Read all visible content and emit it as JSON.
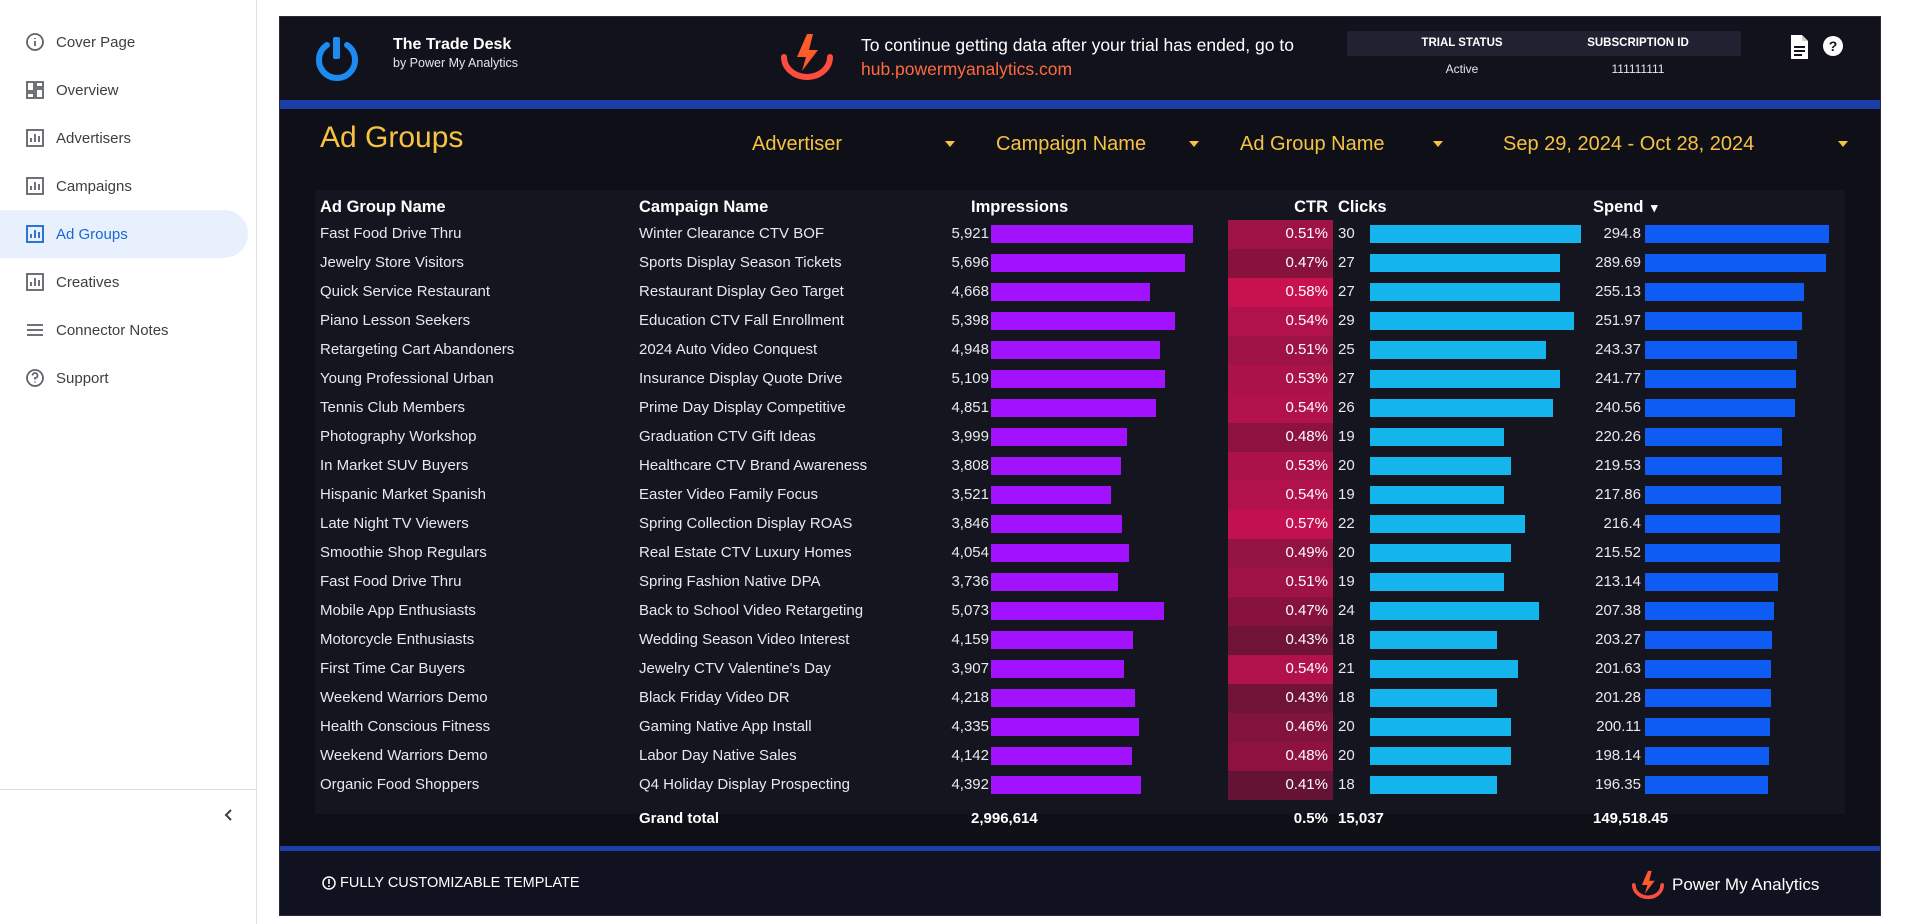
{
  "sidebar": {
    "items": [
      {
        "label": "Cover Page",
        "icon": "info-icon",
        "active": false
      },
      {
        "label": "Overview",
        "icon": "dashboard-icon",
        "active": false
      },
      {
        "label": "Advertisers",
        "icon": "report-icon",
        "active": false
      },
      {
        "label": "Campaigns",
        "icon": "report-icon",
        "active": false
      },
      {
        "label": "Ad Groups",
        "icon": "report-icon",
        "active": true
      },
      {
        "label": "Creatives",
        "icon": "report-icon",
        "active": false
      },
      {
        "label": "Connector Notes",
        "icon": "list-icon",
        "active": false
      },
      {
        "label": "Support",
        "icon": "help-icon",
        "active": false
      }
    ]
  },
  "header": {
    "title": "The Trade Desk",
    "subtitle": "by Power My Analytics",
    "trial_message": "To continue getting data after your trial has ended, go to",
    "trial_link": "hub.powermyanalytics.com",
    "status_labels": [
      "TRIAL STATUS",
      "SUBSCRIPTION ID"
    ],
    "status_values": [
      "Active",
      "111111111"
    ]
  },
  "page": {
    "title": "Ad Groups",
    "filters": [
      "Advertiser",
      "Campaign Name",
      "Ad Group Name",
      "Sep 29, 2024 - Oct 28, 2024"
    ]
  },
  "table": {
    "columns": [
      "Ad Group Name",
      "Campaign Name",
      "Impressions",
      "CTR",
      "Clicks",
      "Spend"
    ],
    "sort_indicator": "▾",
    "rows": [
      [
        "Fast Food Drive Thru",
        "Winter Clearance CTV BOF",
        "5,921",
        "0.51%",
        "30",
        "294.8"
      ],
      [
        "Jewelry Store Visitors",
        "Sports Display Season Tickets",
        "5,696",
        "0.47%",
        "27",
        "289.69"
      ],
      [
        "Quick Service Restaurant",
        "Restaurant Display Geo Target",
        "4,668",
        "0.58%",
        "27",
        "255.13"
      ],
      [
        "Piano Lesson Seekers",
        "Education CTV Fall Enrollment",
        "5,398",
        "0.54%",
        "29",
        "251.97"
      ],
      [
        "Retargeting Cart Abandoners",
        "2024 Auto Video Conquest",
        "4,948",
        "0.51%",
        "25",
        "243.37"
      ],
      [
        "Young Professional Urban",
        "Insurance Display Quote Drive",
        "5,109",
        "0.53%",
        "27",
        "241.77"
      ],
      [
        "Tennis Club Members",
        "Prime Day Display Competitive",
        "4,851",
        "0.54%",
        "26",
        "240.56"
      ],
      [
        "Photography Workshop",
        "Graduation CTV Gift Ideas",
        "3,999",
        "0.48%",
        "19",
        "220.26"
      ],
      [
        "In Market SUV Buyers",
        "Healthcare CTV Brand Awareness",
        "3,808",
        "0.53%",
        "20",
        "219.53"
      ],
      [
        "Hispanic Market Spanish",
        "Easter Video Family Focus",
        "3,521",
        "0.54%",
        "19",
        "217.86"
      ],
      [
        "Late Night TV Viewers",
        "Spring Collection Display ROAS",
        "3,846",
        "0.57%",
        "22",
        "216.4"
      ],
      [
        "Smoothie Shop Regulars",
        "Real Estate CTV Luxury Homes",
        "4,054",
        "0.49%",
        "20",
        "215.52"
      ],
      [
        "Fast Food Drive Thru",
        "Spring Fashion Native DPA",
        "3,736",
        "0.51%",
        "19",
        "213.14"
      ],
      [
        "Mobile App Enthusiasts",
        "Back to School Video Retargeting",
        "5,073",
        "0.47%",
        "24",
        "207.38"
      ],
      [
        "Motorcycle Enthusiasts",
        "Wedding Season Video Interest",
        "4,159",
        "0.43%",
        "18",
        "203.27"
      ],
      [
        "First Time Car Buyers",
        "Jewelry CTV Valentine's Day",
        "3,907",
        "0.54%",
        "21",
        "201.63"
      ],
      [
        "Weekend Warriors Demo",
        "Black Friday Video DR",
        "4,218",
        "0.43%",
        "18",
        "201.28"
      ],
      [
        "Health Conscious Fitness",
        "Gaming Native App Install",
        "4,335",
        "0.46%",
        "20",
        "200.11"
      ],
      [
        "Weekend Warriors Demo",
        "Labor Day Native Sales",
        "4,142",
        "0.48%",
        "20",
        "198.14"
      ],
      [
        "Organic Food Shoppers",
        "Q4 Holiday Display Prospecting",
        "4,392",
        "0.41%",
        "18",
        "196.35"
      ]
    ],
    "totals": {
      "label": "Grand total",
      "impressions": "2,996,614",
      "ctr": "0.5%",
      "clicks": "15,037",
      "spend": "149,518.45"
    }
  },
  "footer": {
    "note": "FULLY CUSTOMIZABLE TEMPLATE",
    "brand": "Power My Analytics"
  },
  "colors": {
    "accent_yellow": "#f5c242",
    "impressions_bar": "#a312ff",
    "clicks_bar": "#13b5ec",
    "spend_bar": "#0f5cf4",
    "ctr_heat": "#c8124f",
    "active_nav": "#1967d2",
    "link": "#ff6a3d"
  }
}
